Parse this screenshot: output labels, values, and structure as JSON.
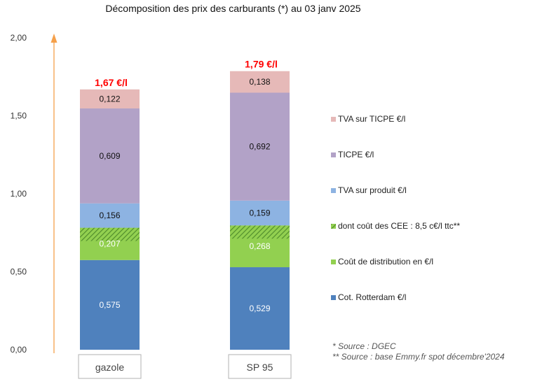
{
  "chart_data": {
    "type": "bar",
    "stacked": true,
    "title": "Décomposition des prix des carburants (*) au 03 janv 2025",
    "ylim": [
      0,
      2.0
    ],
    "yticks": [
      "0,00",
      "0,50",
      "1,00",
      "1,50",
      "2,00"
    ],
    "ytick_values": [
      0,
      0.5,
      1.0,
      1.5,
      2.0
    ],
    "grid": false,
    "legend_position": "right",
    "categories": [
      "gazole",
      "SP 95"
    ],
    "totals": [
      1.67,
      1.79
    ],
    "total_labels": [
      "1,67 €/l",
      "1,79 €/l"
    ],
    "series": [
      {
        "name": "Cot. Rotterdam €/l",
        "color": "#4f81bd",
        "values": [
          0.575,
          0.529
        ],
        "labels": [
          "0,575",
          "0,529"
        ]
      },
      {
        "name": "Coût de distribution en €/l",
        "color": "#92d050",
        "values": [
          0.207,
          0.268
        ],
        "labels": [
          "0,207",
          "0,268"
        ]
      },
      {
        "name": "TVA sur produit €/l",
        "color": "#8db3e2",
        "values": [
          0.156,
          0.159
        ],
        "labels": [
          "0,156",
          "0,159"
        ]
      },
      {
        "name": "TICPE €/l",
        "color": "#b2a2c7",
        "values": [
          0.609,
          0.692
        ],
        "labels": [
          "0,609",
          "0,692"
        ]
      },
      {
        "name": "TVA sur TICPE €/l",
        "color": "#e6b9b8",
        "values": [
          0.122,
          0.138
        ],
        "labels": [
          "0,122",
          "0,138"
        ]
      }
    ],
    "overlay_series": {
      "name": "dont coût des CEE : 8,5 c€/l ttc**",
      "color": "#77b843",
      "pattern": "hatched",
      "value": 0.085
    },
    "legend_order": [
      "TVA sur TICPE €/l",
      "TICPE €/l",
      "TVA sur produit €/l",
      "dont coût des CEE : 8,5 c€/l ttc**",
      "Coût de distribution en €/l",
      "Cot. Rotterdam €/l"
    ],
    "sources": [
      "* Source : DGEC",
      "** Source : base Emmy.fr spot décembre'2024"
    ],
    "axis_arrow_color": "#f5a04a",
    "total_label_color": "#ff0000"
  }
}
